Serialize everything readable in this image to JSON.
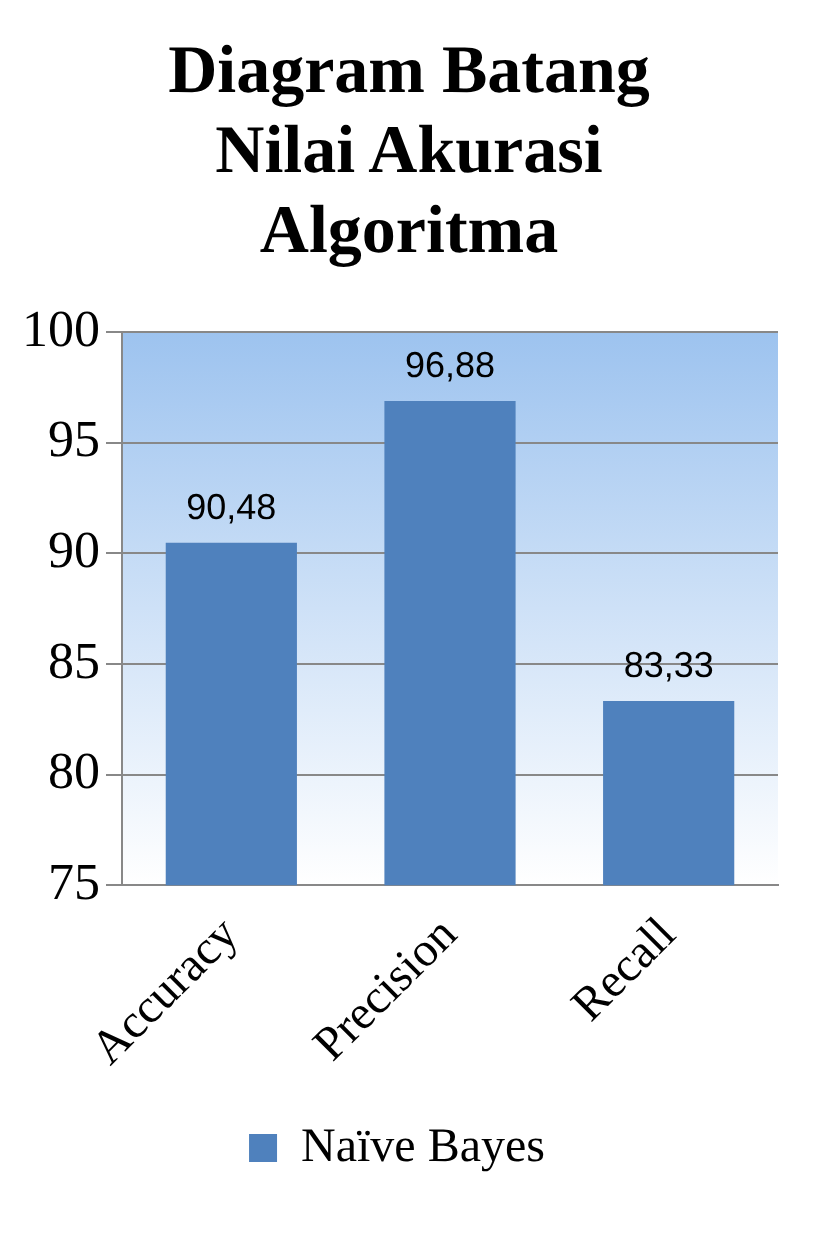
{
  "chart_data": {
    "type": "bar",
    "title": "Diagram Batang Nilai Akurasi Algoritma",
    "categories": [
      "Accuracy",
      "Precision",
      "Recall"
    ],
    "series": [
      {
        "name": "Naïve Bayes",
        "color": "#4f81bd",
        "values": [
          90.48,
          96.88,
          83.33
        ],
        "value_labels": [
          "90,48",
          "96,88",
          "83,33"
        ]
      }
    ],
    "ylim": [
      75,
      100
    ],
    "yticks": [
      75,
      80,
      85,
      90,
      95,
      100
    ],
    "grid": "y",
    "legend": "bottom"
  }
}
